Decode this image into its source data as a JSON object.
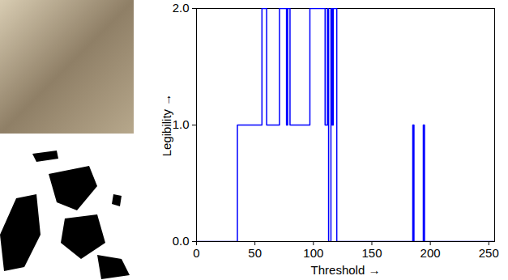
{
  "chart_data": {
    "type": "line",
    "xlabel": "Threshold",
    "ylabel": "Legibility",
    "x": [
      0,
      35,
      56,
      60,
      71,
      77,
      78,
      80,
      97,
      110,
      112,
      113,
      115,
      116,
      117,
      120,
      185,
      186,
      194,
      195,
      255
    ],
    "values": [
      0,
      1,
      2,
      1,
      2,
      1,
      2,
      1,
      2,
      1,
      2,
      0,
      2,
      1,
      2,
      0,
      1,
      0,
      1,
      0,
      0
    ],
    "color": "#0000ff",
    "line_style": "solid",
    "xlim": [
      0,
      255
    ],
    "xticks": [
      0,
      50,
      100,
      150,
      200,
      250
    ],
    "ylim": [
      0,
      2
    ],
    "yticks": [
      0,
      1,
      2
    ],
    "grid": false
  }
}
